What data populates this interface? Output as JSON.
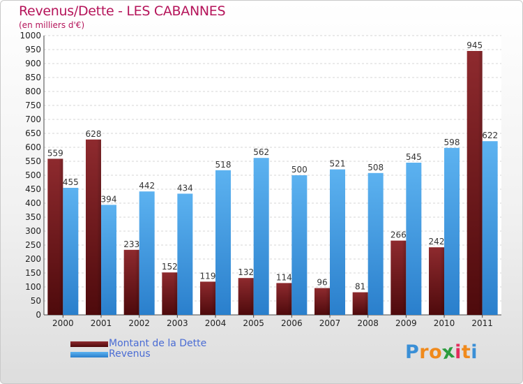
{
  "chart_data": {
    "type": "bar",
    "title": "Revenus/Dette - LES CABANNES",
    "subtitle": "(en milliers d'€)",
    "xlabel": "",
    "ylabel": "",
    "ylim": [
      0,
      1000
    ],
    "ytick_step": 50,
    "grid": true,
    "categories": [
      "2000",
      "2001",
      "2002",
      "2003",
      "2004",
      "2005",
      "2006",
      "2007",
      "2008",
      "2009",
      "2010",
      "2011"
    ],
    "series": [
      {
        "name": "Montant de la Dette",
        "color": "#7a1e22",
        "values": [
          559,
          628,
          233,
          152,
          119,
          132,
          114,
          96,
          81,
          266,
          242,
          945
        ]
      },
      {
        "name": "Revenus",
        "color": "#3f9de4",
        "values": [
          455,
          394,
          442,
          434,
          518,
          562,
          500,
          521,
          508,
          545,
          598,
          622
        ]
      }
    ],
    "legend_position": "bottom-left"
  },
  "logo": {
    "text": "Proxiti",
    "letters": [
      "P",
      "r",
      "o",
      "x",
      "i",
      "t",
      "i"
    ],
    "colors": [
      "#3a8fd6",
      "#f08a1c",
      "#f08a1c",
      "#2c9c3f",
      "#e32c5c",
      "#f08a1c",
      "#3a8fd6"
    ]
  }
}
